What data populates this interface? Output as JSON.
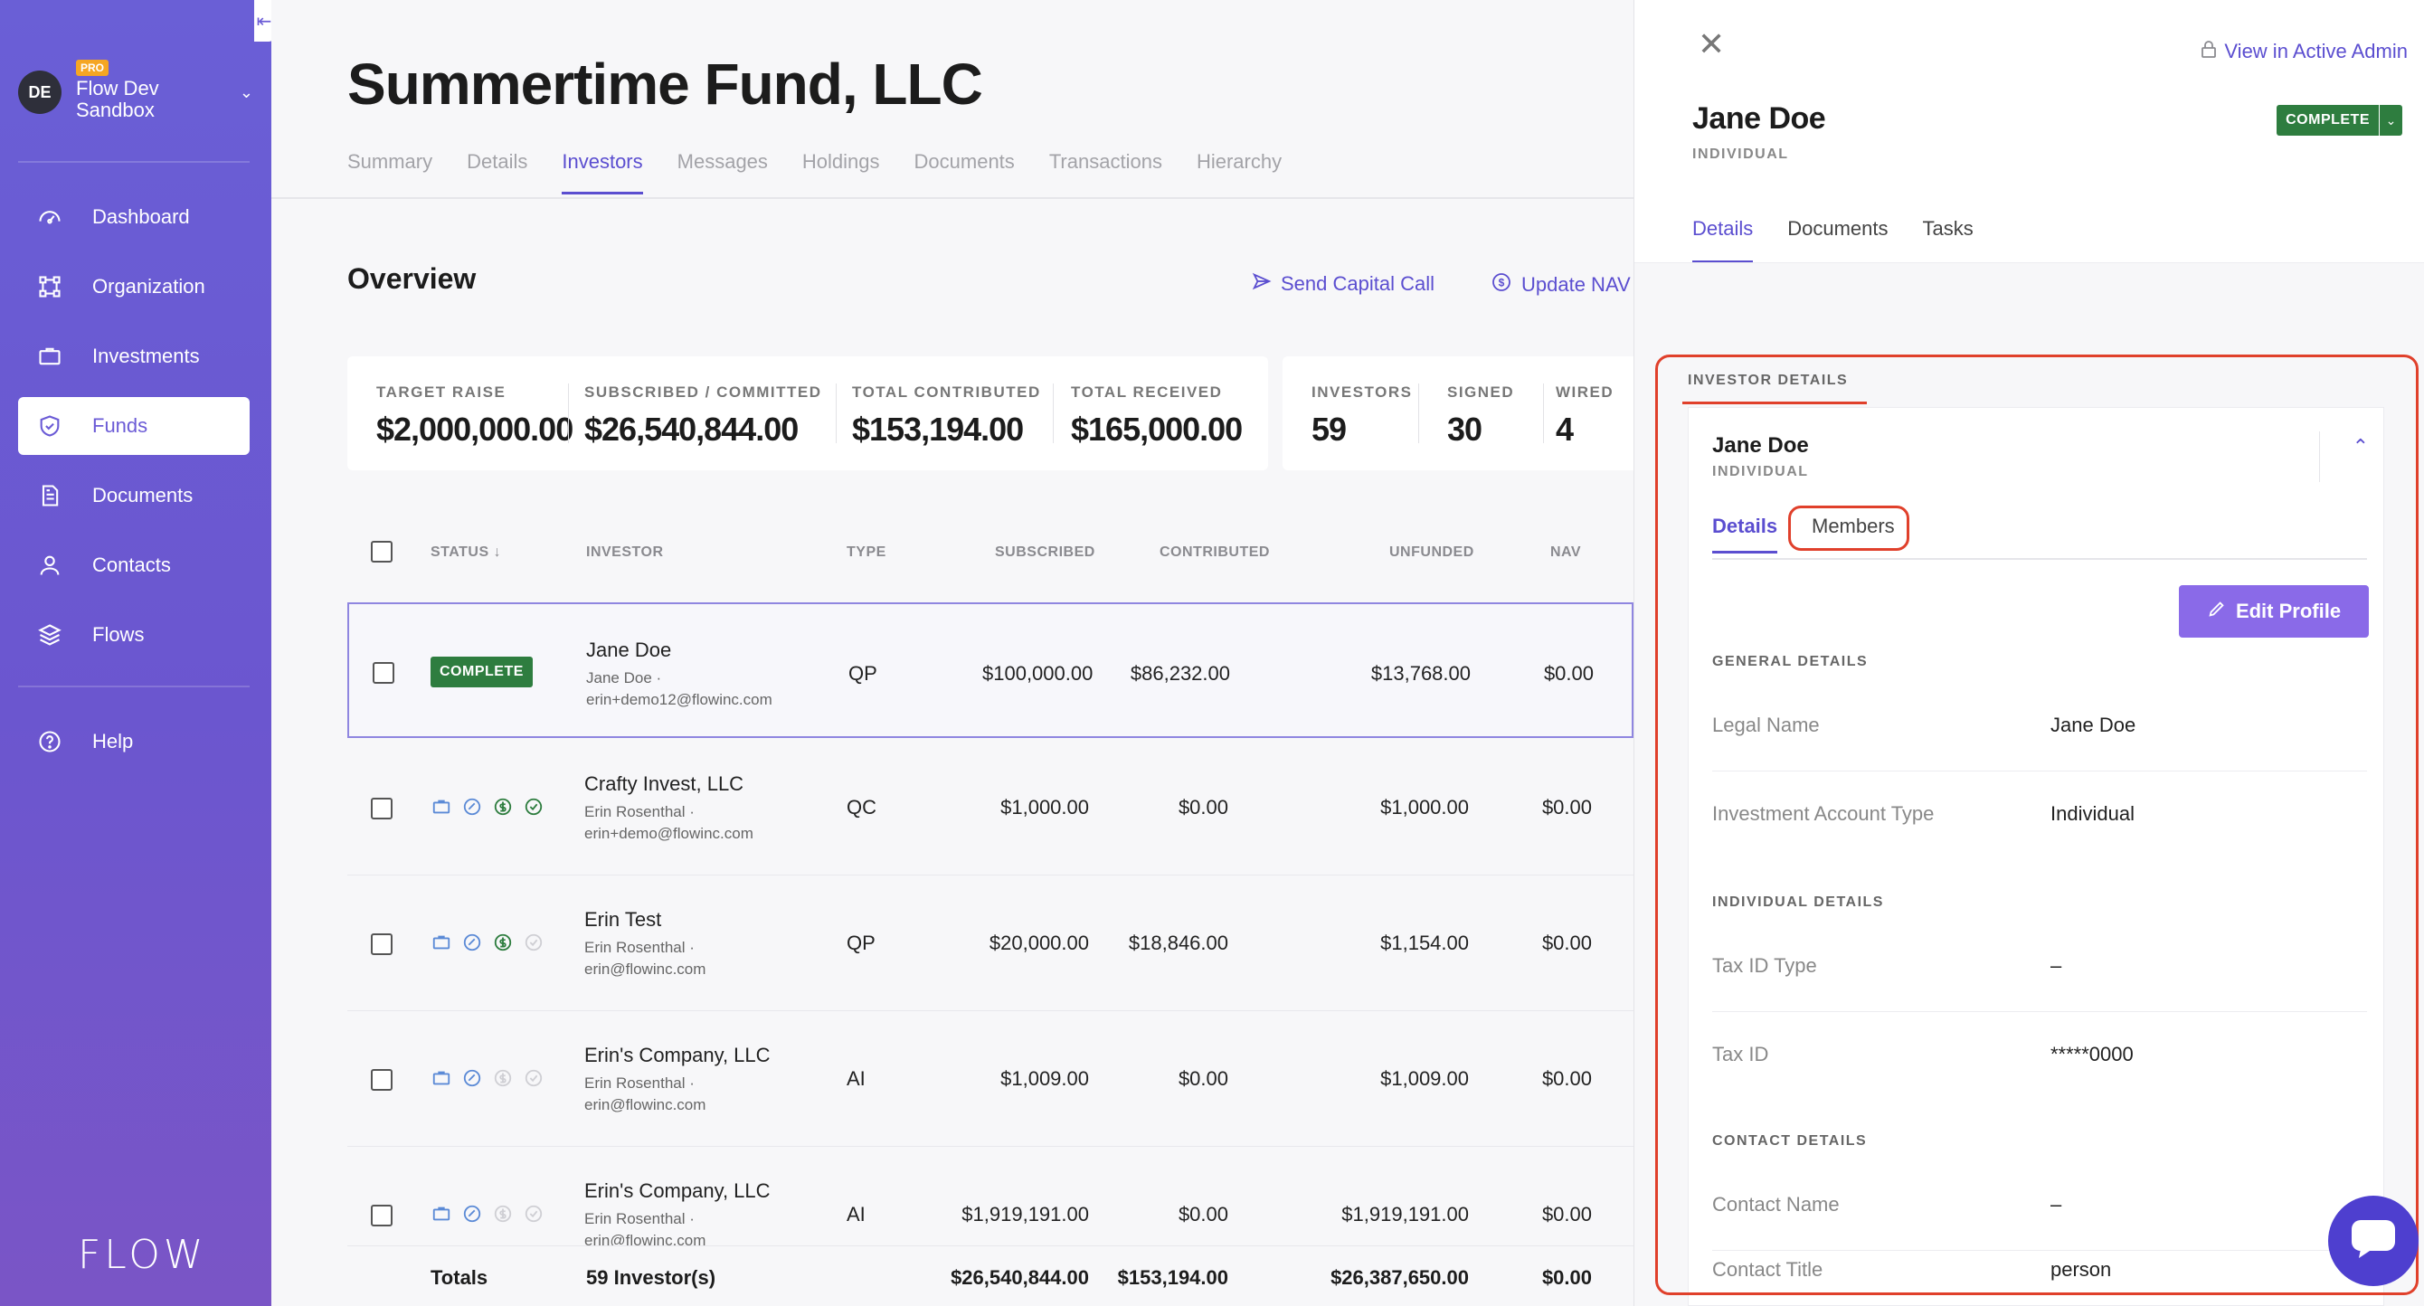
{
  "sidebar": {
    "collapse_icon": "collapse-left-icon",
    "org": {
      "initials": "DE",
      "badge": "PRO",
      "name_line1": "Flow Dev",
      "name_line2": "Sandbox"
    },
    "items": [
      {
        "label": "Dashboard",
        "icon": "dashboard-icon"
      },
      {
        "label": "Organization",
        "icon": "organization-icon"
      },
      {
        "label": "Investments",
        "icon": "briefcase-icon"
      },
      {
        "label": "Funds",
        "icon": "shield-icon",
        "active": true
      },
      {
        "label": "Documents",
        "icon": "document-icon"
      },
      {
        "label": "Contacts",
        "icon": "person-icon"
      },
      {
        "label": "Flows",
        "icon": "layers-icon"
      }
    ],
    "help": "Help",
    "logo": "FLOW"
  },
  "header": {
    "title": "Summertime Fund, LLC",
    "tabs": [
      "Summary",
      "Details",
      "Investors",
      "Messages",
      "Holdings",
      "Documents",
      "Transactions",
      "Hierarchy"
    ],
    "active_tab": "Investors"
  },
  "overview": {
    "title": "Overview",
    "send_capital_call": "Send Capital Call",
    "update_nav": "Update NAV"
  },
  "stats": {
    "target_raise": {
      "label": "TARGET RAISE",
      "value": "$2,000,000.00"
    },
    "subscribed": {
      "label": "SUBSCRIBED / COMMITTED",
      "value": "$26,540,844.00"
    },
    "contributed": {
      "label": "TOTAL CONTRIBUTED",
      "value": "$153,194.00"
    },
    "received": {
      "label": "TOTAL RECEIVED",
      "value": "$165,000.00"
    },
    "investors": {
      "label": "INVESTORS",
      "value": "59"
    },
    "signed": {
      "label": "SIGNED",
      "value": "30"
    },
    "wired": {
      "label": "WIRED",
      "value": "4"
    }
  },
  "table": {
    "headers": {
      "status": "STATUS",
      "investor": "INVESTOR",
      "type": "TYPE",
      "subscribed": "SUBSCRIBED",
      "contributed": "CONTRIBUTED",
      "unfunded": "UNFUNDED",
      "nav": "NAV"
    },
    "rows": [
      {
        "status": "COMPLETE",
        "name": "Jane Doe",
        "contact": "Jane Doe ·",
        "email": "erin+demo12@flowinc.com",
        "type": "QP",
        "subscribed": "$100,000.00",
        "contributed": "$86,232.00",
        "unfunded": "$13,768.00",
        "nav": "$0.00"
      },
      {
        "status": "",
        "name": "Crafty Invest, LLC",
        "contact": "Erin Rosenthal ·",
        "email": "erin+demo@flowinc.com",
        "type": "QC",
        "subscribed": "$1,000.00",
        "contributed": "$0.00",
        "unfunded": "$1,000.00",
        "nav": "$0.00"
      },
      {
        "status": "",
        "name": "Erin Test",
        "contact": "Erin Rosenthal ·",
        "email": "erin@flowinc.com",
        "type": "QP",
        "subscribed": "$20,000.00",
        "contributed": "$18,846.00",
        "unfunded": "$1,154.00",
        "nav": "$0.00"
      },
      {
        "status": "",
        "name": "Erin's Company, LLC",
        "contact": "Erin Rosenthal ·",
        "email": "erin@flowinc.com",
        "type": "AI",
        "subscribed": "$1,009.00",
        "contributed": "$0.00",
        "unfunded": "$1,009.00",
        "nav": "$0.00"
      },
      {
        "status": "",
        "name": "Erin's Company, LLC",
        "contact": "Erin Rosenthal ·",
        "email": "erin@flowinc.com",
        "type": "AI",
        "subscribed": "$1,919,191.00",
        "contributed": "$0.00",
        "unfunded": "$1,919,191.00",
        "nav": "$0.00"
      }
    ],
    "totals": {
      "label": "Totals",
      "investors": "59 Investor(s)",
      "subscribed": "$26,540,844.00",
      "contributed": "$153,194.00",
      "unfunded": "$26,387,650.00",
      "nav": "$0.00"
    }
  },
  "panel": {
    "view_admin": "View in Active Admin",
    "name": "Jane Doe",
    "type": "INDIVIDUAL",
    "status": "COMPLETE",
    "tabs": [
      "Details",
      "Documents",
      "Tasks"
    ],
    "section": "INVESTOR DETAILS",
    "card": {
      "name": "Jane Doe",
      "type": "INDIVIDUAL",
      "tabs": [
        "Details",
        "Members"
      ],
      "edit_button": "Edit Profile",
      "general": "GENERAL DETAILS",
      "legal_name": {
        "label": "Legal Name",
        "value": "Jane Doe"
      },
      "account_type": {
        "label": "Investment Account Type",
        "value": "Individual"
      },
      "individual": "INDIVIDUAL DETAILS",
      "tax_id_type": {
        "label": "Tax ID Type",
        "value": "–"
      },
      "tax_id": {
        "label": "Tax ID",
        "value": "*****0000"
      },
      "contact": "CONTACT DETAILS",
      "contact_name": {
        "label": "Contact Name",
        "value": "–"
      },
      "contact_title": {
        "label": "Contact Title",
        "value": "person"
      }
    }
  },
  "colors": {
    "accent": "#5b4ed0",
    "success": "#2e7d3f",
    "annotation": "#e0402b"
  }
}
